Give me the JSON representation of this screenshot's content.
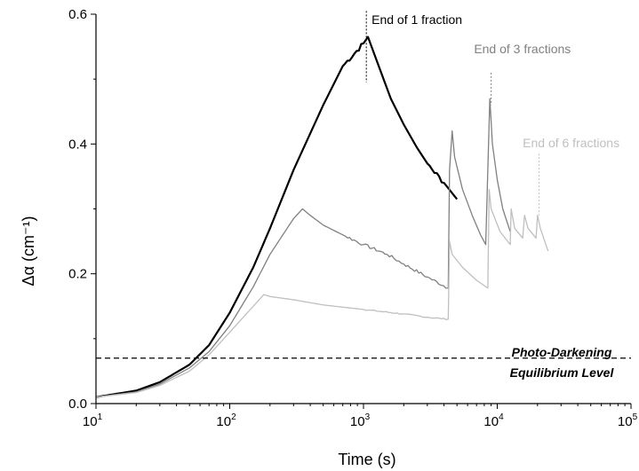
{
  "chart_data": {
    "type": "line",
    "title": "",
    "xlabel": "Time (s)",
    "ylabel": "Δα (cm⁻¹)",
    "xscale": "log",
    "xlim": [
      10,
      100000
    ],
    "ylim": [
      0,
      0.6
    ],
    "grid": false,
    "x_ticks": [
      {
        "value": 10,
        "base": "10",
        "exp": "1"
      },
      {
        "value": 100,
        "base": "10",
        "exp": "2"
      },
      {
        "value": 1000,
        "base": "10",
        "exp": "3"
      },
      {
        "value": 10000,
        "base": "10",
        "exp": "4"
      },
      {
        "value": 100000,
        "base": "10",
        "exp": "5"
      }
    ],
    "y_ticks": [
      {
        "value": 0.0,
        "label": "0.0"
      },
      {
        "value": 0.2,
        "label": "0.2"
      },
      {
        "value": 0.4,
        "label": "0.4"
      },
      {
        "value": 0.6,
        "label": "0.6"
      }
    ],
    "series": [
      {
        "color": "#000000",
        "noise": 0.008,
        "points": [
          [
            10,
            0.01
          ],
          [
            20,
            0.02
          ],
          [
            30,
            0.033
          ],
          [
            50,
            0.06
          ],
          [
            70,
            0.09
          ],
          [
            100,
            0.14
          ],
          [
            150,
            0.21
          ],
          [
            200,
            0.27
          ],
          [
            300,
            0.36
          ],
          [
            500,
            0.46
          ],
          [
            700,
            0.52
          ],
          [
            1000,
            0.555
          ],
          [
            1080,
            0.565
          ],
          [
            1300,
            0.52
          ],
          [
            1600,
            0.47
          ],
          [
            2000,
            0.43
          ],
          [
            2500,
            0.395
          ],
          [
            3000,
            0.37
          ],
          [
            4000,
            0.34
          ],
          [
            5000,
            0.315
          ]
        ]
      },
      {
        "color": "#808080",
        "noise": 0.005,
        "points": [
          [
            10,
            0.01
          ],
          [
            20,
            0.018
          ],
          [
            30,
            0.03
          ],
          [
            50,
            0.055
          ],
          [
            70,
            0.08
          ],
          [
            100,
            0.12
          ],
          [
            150,
            0.18
          ],
          [
            200,
            0.23
          ],
          [
            300,
            0.285
          ],
          [
            350,
            0.3
          ],
          [
            400,
            0.29
          ],
          [
            500,
            0.275
          ],
          [
            700,
            0.26
          ],
          [
            1000,
            0.245
          ],
          [
            1500,
            0.23
          ],
          [
            2000,
            0.215
          ],
          [
            3000,
            0.195
          ],
          [
            4300,
            0.178
          ],
          [
            4400,
            0.36
          ],
          [
            4600,
            0.42
          ],
          [
            4800,
            0.38
          ],
          [
            5500,
            0.33
          ],
          [
            6500,
            0.29
          ],
          [
            7500,
            0.26
          ],
          [
            8200,
            0.245
          ],
          [
            8800,
            0.47
          ],
          [
            9200,
            0.4
          ],
          [
            10000,
            0.345
          ],
          [
            11000,
            0.3
          ],
          [
            12500,
            0.265
          ]
        ]
      },
      {
        "color": "#bfbfbf",
        "noise": 0.002,
        "points": [
          [
            10,
            0.01
          ],
          [
            20,
            0.017
          ],
          [
            30,
            0.028
          ],
          [
            50,
            0.05
          ],
          [
            70,
            0.075
          ],
          [
            100,
            0.11
          ],
          [
            150,
            0.15
          ],
          [
            180,
            0.168
          ],
          [
            200,
            0.165
          ],
          [
            300,
            0.16
          ],
          [
            500,
            0.152
          ],
          [
            1000,
            0.145
          ],
          [
            2000,
            0.138
          ],
          [
            3000,
            0.133
          ],
          [
            4300,
            0.13
          ],
          [
            4400,
            0.25
          ],
          [
            4600,
            0.23
          ],
          [
            5500,
            0.21
          ],
          [
            7000,
            0.19
          ],
          [
            8500,
            0.178
          ],
          [
            8700,
            0.33
          ],
          [
            9000,
            0.3
          ],
          [
            10500,
            0.265
          ],
          [
            12500,
            0.245
          ],
          [
            12700,
            0.3
          ],
          [
            13500,
            0.27
          ],
          [
            15500,
            0.255
          ],
          [
            16000,
            0.29
          ],
          [
            17000,
            0.27
          ],
          [
            19500,
            0.255
          ],
          [
            20000,
            0.29
          ],
          [
            21000,
            0.27
          ],
          [
            24000,
            0.235
          ]
        ]
      }
    ],
    "reference_lines": [
      {
        "type": "horizontal",
        "y": 0.07,
        "style": "dashed",
        "color": "#000000"
      }
    ],
    "markers": [
      {
        "x": 1050,
        "y_top": 0.605,
        "y_bottom": 0.495,
        "color": "#000000"
      },
      {
        "x": 9000,
        "y_top": 0.51,
        "y_bottom": 0.46,
        "color": "#808080"
      },
      {
        "x": 20500,
        "y_top": 0.385,
        "y_bottom": 0.29,
        "color": "#bfbfbf"
      }
    ],
    "annotations": [
      {
        "text": "End of 1 fraction",
        "x": 1150,
        "y": 0.585,
        "color": "#000000"
      },
      {
        "text": "End of 3 fractions",
        "x": 6700,
        "y": 0.54,
        "color": "#808080"
      },
      {
        "text": "End of 6 fractions",
        "x": 15500,
        "y": 0.395,
        "color": "#bfbfbf"
      }
    ],
    "equilibrium_label": {
      "line1": "Photo-Darkening",
      "line2": "Equilibrium Level"
    }
  }
}
